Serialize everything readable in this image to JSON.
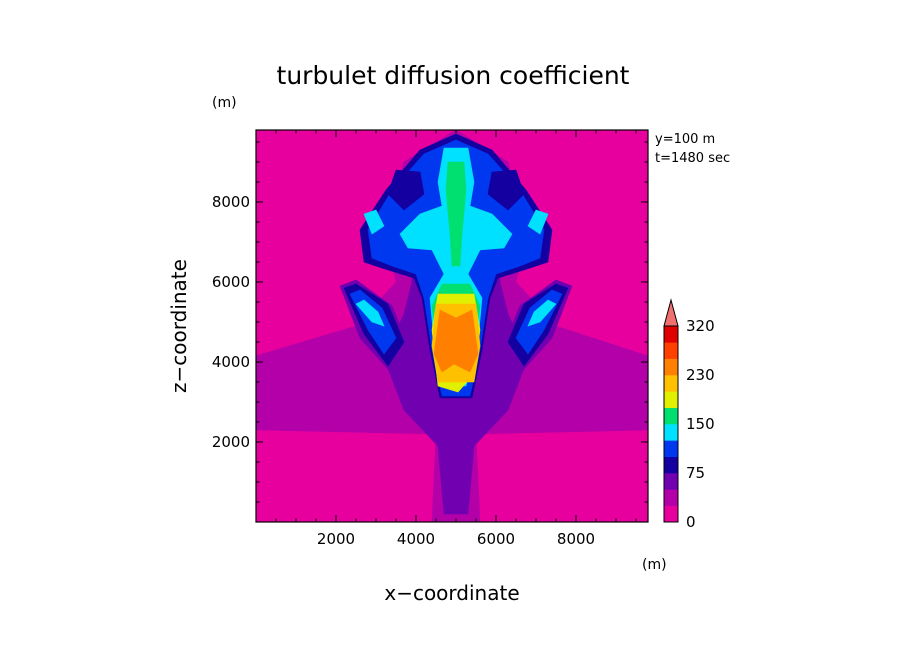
{
  "chart_data": {
    "type": "heatmap",
    "title": "turbulet diffusion coefficient",
    "xlabel": "x−coordinate",
    "ylabel": "z−coordinate",
    "x_unit": "(m)",
    "y_unit": "(m)",
    "annotations": [
      "y=100  m",
      "t=1480  sec"
    ],
    "xlim": [
      0,
      9800
    ],
    "ylim": [
      0,
      9800
    ],
    "x_ticks": [
      2000,
      4000,
      6000,
      8000
    ],
    "y_ticks": [
      2000,
      4000,
      6000,
      8000
    ],
    "x_tick_labels": [
      "2000",
      "4000",
      "6000",
      "8000"
    ],
    "y_tick_labels": [
      "2000",
      "4000",
      "6000",
      "8000"
    ],
    "colorbar": {
      "levels": [
        0,
        25,
        50,
        75,
        100,
        125,
        150,
        175,
        200,
        230,
        260,
        290,
        320
      ],
      "colors": [
        "#e8009e",
        "#b400a8",
        "#7000b0",
        "#1400a0",
        "#0038f0",
        "#00e0ff",
        "#00e070",
        "#e0f000",
        "#ffc000",
        "#ff8000",
        "#ff4000",
        "#e00000",
        "#f07070"
      ],
      "tick_labels": [
        "0",
        "75",
        "150",
        "230",
        "320"
      ],
      "tick_values": [
        0,
        75,
        150,
        230,
        320
      ],
      "extend": "max"
    },
    "regions": [
      {
        "level": 1,
        "points": [
          [
            4400,
            0
          ],
          [
            5600,
            0
          ],
          [
            5500,
            2200
          ],
          [
            9800,
            2300
          ],
          [
            9800,
            4150
          ],
          [
            7500,
            4900
          ],
          [
            6500,
            6000
          ],
          [
            6800,
            7300
          ],
          [
            6300,
            9000
          ],
          [
            5000,
            9800
          ],
          [
            3700,
            9000
          ],
          [
            3200,
            7300
          ],
          [
            3500,
            6000
          ],
          [
            2500,
            4900
          ],
          [
            0,
            4150
          ],
          [
            0,
            2300
          ],
          [
            4500,
            2200
          ]
        ]
      },
      {
        "level": 2,
        "points": [
          [
            4700,
            200
          ],
          [
            5300,
            200
          ],
          [
            5450,
            1900
          ],
          [
            6300,
            2800
          ],
          [
            6800,
            4100
          ],
          [
            6300,
            5200
          ],
          [
            6100,
            6000
          ],
          [
            6100,
            7500
          ],
          [
            5800,
            9100
          ],
          [
            5000,
            9650
          ],
          [
            4200,
            9100
          ],
          [
            3900,
            7500
          ],
          [
            3900,
            6000
          ],
          [
            3700,
            5200
          ],
          [
            3200,
            4100
          ],
          [
            3700,
            2800
          ],
          [
            4550,
            1900
          ]
        ]
      },
      {
        "level": 2,
        "points": [
          [
            2100,
            5900
          ],
          [
            2500,
            6050
          ],
          [
            3400,
            5400
          ],
          [
            3900,
            4200
          ],
          [
            3500,
            3600
          ],
          [
            2600,
            4600
          ]
        ]
      },
      {
        "level": 2,
        "points": [
          [
            7900,
            5900
          ],
          [
            7500,
            6050
          ],
          [
            6600,
            5400
          ],
          [
            6100,
            4200
          ],
          [
            6500,
            3600
          ],
          [
            7400,
            4600
          ]
        ]
      },
      {
        "level": 3,
        "points": [
          [
            5000,
            9700
          ],
          [
            5900,
            9300
          ],
          [
            6750,
            8300
          ],
          [
            7400,
            7300
          ],
          [
            7300,
            6500
          ],
          [
            6700,
            6300
          ],
          [
            6050,
            6100
          ],
          [
            5850,
            5600
          ],
          [
            5650,
            4300
          ],
          [
            5400,
            3100
          ],
          [
            4600,
            3100
          ],
          [
            4350,
            4300
          ],
          [
            4150,
            5600
          ],
          [
            3950,
            6100
          ],
          [
            3300,
            6300
          ],
          [
            2700,
            6500
          ],
          [
            2600,
            7300
          ],
          [
            3250,
            8300
          ],
          [
            4100,
            9300
          ]
        ]
      },
      {
        "level": 3,
        "points": [
          [
            2200,
            5850
          ],
          [
            2500,
            5950
          ],
          [
            3300,
            5450
          ],
          [
            3700,
            4500
          ],
          [
            3300,
            3900
          ],
          [
            2700,
            4700
          ]
        ]
      },
      {
        "level": 3,
        "points": [
          [
            7800,
            5850
          ],
          [
            7500,
            5950
          ],
          [
            6700,
            5450
          ],
          [
            6300,
            4500
          ],
          [
            6700,
            3900
          ],
          [
            7300,
            4700
          ]
        ]
      },
      {
        "level": 4,
        "points": [
          [
            5000,
            9550
          ],
          [
            5800,
            9200
          ],
          [
            6600,
            8300
          ],
          [
            7200,
            7300
          ],
          [
            7100,
            6600
          ],
          [
            6600,
            6400
          ],
          [
            6000,
            6200
          ],
          [
            5800,
            5600
          ],
          [
            5600,
            4300
          ],
          [
            5350,
            3150
          ],
          [
            4650,
            3150
          ],
          [
            4400,
            4300
          ],
          [
            4200,
            5600
          ],
          [
            4000,
            6200
          ],
          [
            3400,
            6400
          ],
          [
            2900,
            6600
          ],
          [
            2800,
            7300
          ],
          [
            3400,
            8300
          ],
          [
            4200,
            9200
          ]
        ]
      },
      {
        "level": 4,
        "points": [
          [
            2350,
            5700
          ],
          [
            2600,
            5800
          ],
          [
            3150,
            5350
          ],
          [
            3500,
            4600
          ],
          [
            3200,
            4200
          ],
          [
            2800,
            4800
          ]
        ]
      },
      {
        "level": 4,
        "points": [
          [
            7650,
            5700
          ],
          [
            7400,
            5800
          ],
          [
            6850,
            5350
          ],
          [
            6500,
            4600
          ],
          [
            6800,
            4200
          ],
          [
            7200,
            4800
          ]
        ]
      },
      {
        "level": 3,
        "points": [
          [
            3500,
            8800
          ],
          [
            4100,
            8750
          ],
          [
            4200,
            8200
          ],
          [
            3700,
            7800
          ],
          [
            3300,
            8200
          ]
        ]
      },
      {
        "level": 3,
        "points": [
          [
            6500,
            8800
          ],
          [
            5900,
            8750
          ],
          [
            5800,
            8200
          ],
          [
            6300,
            7800
          ],
          [
            6700,
            8200
          ]
        ]
      },
      {
        "level": 5,
        "points": [
          [
            2500,
            5450
          ],
          [
            2700,
            5550
          ],
          [
            3050,
            5250
          ],
          [
            3200,
            4900
          ],
          [
            2900,
            5000
          ]
        ]
      },
      {
        "level": 5,
        "points": [
          [
            7500,
            5450
          ],
          [
            7300,
            5550
          ],
          [
            6950,
            5250
          ],
          [
            6800,
            4900
          ],
          [
            7100,
            5000
          ]
        ]
      },
      {
        "level": 5,
        "points": [
          [
            2700,
            7700
          ],
          [
            3000,
            7800
          ],
          [
            3200,
            7400
          ],
          [
            2900,
            7200
          ]
        ]
      },
      {
        "level": 5,
        "points": [
          [
            7300,
            7700
          ],
          [
            7000,
            7800
          ],
          [
            6800,
            7400
          ],
          [
            7100,
            7200
          ]
        ]
      },
      {
        "level": 5,
        "points": [
          [
            4700,
            9350
          ],
          [
            5300,
            9350
          ],
          [
            5450,
            8500
          ],
          [
            5350,
            7900
          ],
          [
            5900,
            7700
          ],
          [
            6400,
            7200
          ],
          [
            6200,
            6850
          ],
          [
            5600,
            6800
          ],
          [
            5300,
            6200
          ],
          [
            5650,
            5600
          ],
          [
            5550,
            4500
          ],
          [
            5250,
            3400
          ],
          [
            4750,
            3400
          ],
          [
            4450,
            4500
          ],
          [
            4350,
            5600
          ],
          [
            4700,
            6200
          ],
          [
            4400,
            6800
          ],
          [
            3800,
            6850
          ],
          [
            3600,
            7200
          ],
          [
            4100,
            7700
          ],
          [
            4650,
            7900
          ],
          [
            4550,
            8500
          ]
        ]
      },
      {
        "level": 6,
        "points": [
          [
            4800,
            9000
          ],
          [
            5200,
            9000
          ],
          [
            5250,
            8300
          ],
          [
            5150,
            7200
          ],
          [
            5100,
            6400
          ],
          [
            4900,
            6400
          ],
          [
            4850,
            7200
          ],
          [
            4750,
            8300
          ]
        ]
      },
      {
        "level": 6,
        "points": [
          [
            4650,
            5950
          ],
          [
            5350,
            5950
          ],
          [
            5600,
            5400
          ],
          [
            5500,
            4500
          ],
          [
            4500,
            4500
          ],
          [
            4400,
            5400
          ]
        ]
      },
      {
        "level": 7,
        "points": [
          [
            4550,
            5700
          ],
          [
            5450,
            5700
          ],
          [
            5600,
            4800
          ],
          [
            5450,
            3700
          ],
          [
            5050,
            3250
          ],
          [
            4550,
            3400
          ],
          [
            4400,
            4800
          ]
        ]
      },
      {
        "level": 8,
        "points": [
          [
            4500,
            5450
          ],
          [
            5500,
            5450
          ],
          [
            5600,
            4400
          ],
          [
            5450,
            3500
          ],
          [
            4550,
            3500
          ],
          [
            4400,
            4400
          ]
        ]
      },
      {
        "level": 9,
        "points": [
          [
            4600,
            5300
          ],
          [
            5000,
            5100
          ],
          [
            5400,
            5300
          ],
          [
            5550,
            4200
          ],
          [
            5350,
            3750
          ],
          [
            4950,
            3950
          ],
          [
            4650,
            3750
          ],
          [
            4450,
            4200
          ]
        ]
      }
    ]
  }
}
